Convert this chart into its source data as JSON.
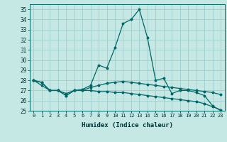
{
  "xlabel": "Humidex (Indice chaleur)",
  "background_color": "#c5e8e5",
  "grid_color": "#9ecece",
  "line_color": "#006666",
  "xlim": [
    -0.5,
    23.5
  ],
  "ylim": [
    25,
    35.5
  ],
  "yticks": [
    25,
    26,
    27,
    28,
    29,
    30,
    31,
    32,
    33,
    34,
    35
  ],
  "xticks": [
    0,
    1,
    2,
    3,
    4,
    5,
    6,
    7,
    8,
    9,
    10,
    11,
    12,
    13,
    14,
    15,
    16,
    17,
    18,
    19,
    20,
    21,
    22,
    23
  ],
  "hours": [
    0,
    1,
    2,
    3,
    4,
    5,
    6,
    7,
    8,
    9,
    10,
    11,
    12,
    13,
    14,
    15,
    16,
    17,
    18,
    19,
    20,
    21,
    22,
    23
  ],
  "line1": [
    28.0,
    27.8,
    27.0,
    27.0,
    26.5,
    27.0,
    27.1,
    27.5,
    29.5,
    29.2,
    31.2,
    33.6,
    34.0,
    35.0,
    32.2,
    28.0,
    28.2,
    26.7,
    27.0,
    27.0,
    26.8,
    26.5,
    25.5,
    25.0
  ],
  "line2": [
    28.0,
    27.8,
    27.0,
    27.0,
    26.7,
    27.0,
    27.0,
    27.3,
    27.5,
    27.7,
    27.8,
    27.9,
    27.8,
    27.7,
    27.6,
    27.5,
    27.4,
    27.3,
    27.2,
    27.1,
    27.0,
    26.9,
    26.8,
    26.6
  ],
  "line3": [
    28.0,
    27.5,
    27.0,
    27.0,
    26.5,
    27.0,
    27.0,
    27.0,
    26.9,
    26.9,
    26.8,
    26.8,
    26.7,
    26.6,
    26.5,
    26.4,
    26.3,
    26.2,
    26.1,
    26.0,
    25.9,
    25.7,
    25.4,
    25.1
  ]
}
